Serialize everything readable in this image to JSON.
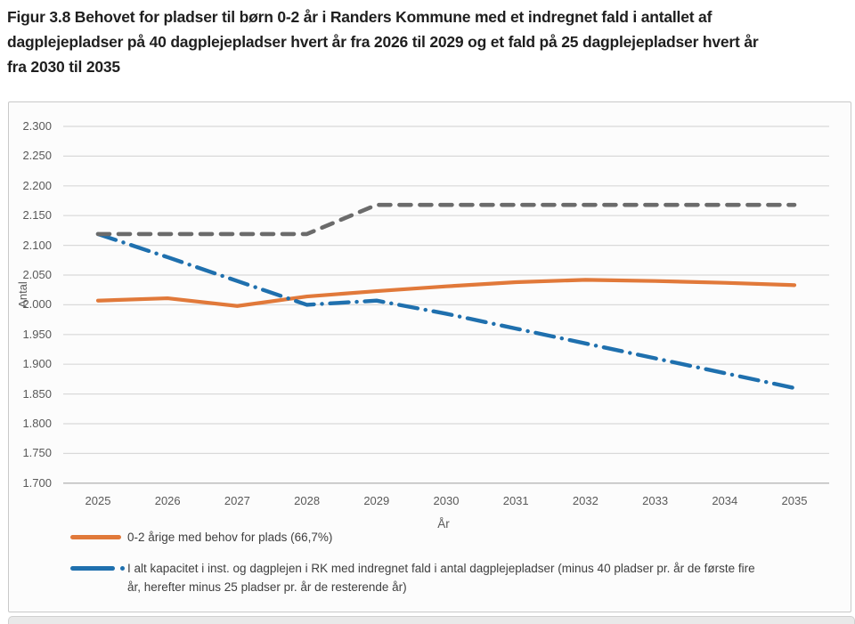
{
  "figure": {
    "title_lines": [
      "Figur 3.8 Behovet for pladser til børn 0-2 år i Randers Kommune med et indregnet fald i antallet af",
      "dagplejepladser på 40 dagplejepladser hvert år fra 2026 til 2029 og et fald på 25 dagplejepladser hvert år",
      "fra 2030 til 2035"
    ]
  },
  "chart_data": {
    "type": "line",
    "title": "Figur 3.8 Behovet for pladser til børn 0-2 år i Randers Kommune med et indregnet fald i antallet af dagplejepladser på 40 dagplejepladser hvert år fra 2026 til 2029 og et fald på 25 dagplejepladser hvert år fra 2030 til 2035",
    "xlabel": "År",
    "ylabel": "Antal",
    "ylim": [
      1700,
      2300
    ],
    "ytick_step": 50,
    "ytick_labels": [
      "2.300",
      "2.250",
      "2.200",
      "2.150",
      "2.100",
      "2.050",
      "2.000",
      "1.950",
      "1.900",
      "1.850",
      "1.800",
      "1.750",
      "1.700"
    ],
    "grid": true,
    "legend_position": "bottom-left",
    "categories": [
      "2025",
      "2026",
      "2027",
      "2028",
      "2029",
      "2030",
      "2031",
      "2032",
      "2033",
      "2034",
      "2035"
    ],
    "series": [
      {
        "name": "0-2 årige med behov for plads (66,7%)",
        "color": "#E1793A",
        "style": "solid",
        "in_legend": true,
        "values": [
          2007,
          2011,
          1998,
          2014,
          2023,
          2031,
          2038,
          2042,
          2040,
          2037,
          2033
        ]
      },
      {
        "name": "I alt kapacitet i inst. og dagplejen i RK med indregnet fald i antal dagplejepladser (minus 40 pladser pr. år de første fire år, herefter minus 25 pladser pr. år de resterende år)",
        "color": "#1F70AE",
        "style": "dashdot",
        "in_legend": true,
        "values": [
          2119,
          2080,
          2040,
          2000,
          2007,
          1985,
          1960,
          1935,
          1910,
          1885,
          1860
        ]
      },
      {
        "name": "",
        "color": "#6B6B6B",
        "style": "dashed",
        "in_legend": false,
        "values": [
          2119,
          2119,
          2119,
          2119,
          2168,
          2168,
          2168,
          2168,
          2168,
          2168,
          2168
        ]
      }
    ],
    "colors": {
      "grid": "#D9D9D9",
      "axis": "#BDBDBD",
      "tick_text": "#595959",
      "title_text": "#1F1F1F",
      "legend_text": "#3F3F3F",
      "panel_border": "#C9C9C9",
      "panel_background": "#FCFCFC",
      "bottom_strip": "#E9E9E9"
    }
  }
}
